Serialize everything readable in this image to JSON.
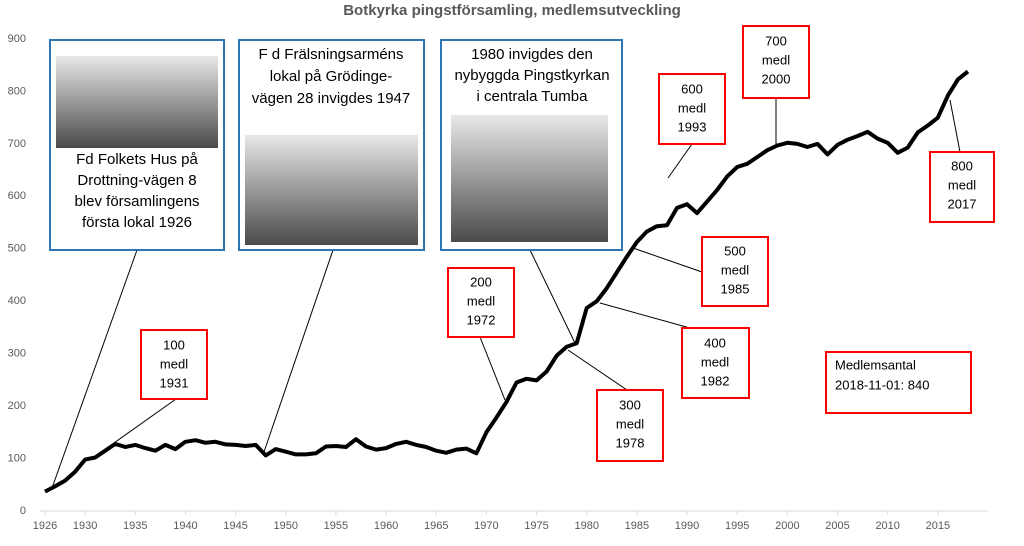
{
  "chart_data": {
    "type": "line",
    "title": "Botkyrka pingstförsamling, medlemsutveckling",
    "x": [
      1926,
      1927,
      1928,
      1929,
      1930,
      1931,
      1932,
      1933,
      1934,
      1935,
      1936,
      1937,
      1938,
      1939,
      1940,
      1941,
      1942,
      1943,
      1944,
      1945,
      1946,
      1947,
      1948,
      1949,
      1950,
      1951,
      1952,
      1953,
      1954,
      1955,
      1956,
      1957,
      1958,
      1959,
      1960,
      1961,
      1962,
      1963,
      1964,
      1965,
      1966,
      1967,
      1968,
      1969,
      1970,
      1971,
      1972,
      1973,
      1974,
      1975,
      1976,
      1977,
      1978,
      1979,
      1980,
      1981,
      1982,
      1983,
      1984,
      1985,
      1986,
      1987,
      1988,
      1989,
      1990,
      1991,
      1992,
      1993,
      1994,
      1995,
      1996,
      1997,
      1998,
      1999,
      2000,
      2001,
      2002,
      2003,
      2004,
      2005,
      2006,
      2007,
      2008,
      2009,
      2010,
      2011,
      2012,
      2013,
      2014,
      2015,
      2016,
      2017,
      2018
    ],
    "values": [
      37,
      47,
      58,
      75,
      98,
      102,
      115,
      128,
      122,
      126,
      120,
      115,
      126,
      118,
      132,
      135,
      130,
      132,
      127,
      126,
      124,
      126,
      106,
      118,
      113,
      108,
      108,
      110,
      123,
      124,
      122,
      137,
      123,
      117,
      120,
      128,
      132,
      126,
      122,
      115,
      111,
      117,
      119,
      110,
      150,
      178,
      208,
      245,
      252,
      249,
      266,
      296,
      313,
      320,
      387,
      400,
      425,
      455,
      485,
      513,
      533,
      543,
      545,
      578,
      585,
      568,
      590,
      612,
      638,
      656,
      662,
      675,
      688,
      697,
      702,
      700,
      694,
      700,
      680,
      698,
      708,
      715,
      723,
      710,
      702,
      683,
      693,
      722,
      735,
      750,
      792,
      823,
      838
    ],
    "color": "#000000",
    "xlim": [
      1926,
      2020
    ],
    "xticks": [
      1926,
      1930,
      1935,
      1940,
      1945,
      1950,
      1955,
      1960,
      1965,
      1970,
      1975,
      1980,
      1985,
      1990,
      1995,
      2000,
      2005,
      2010,
      2015
    ],
    "ylim": [
      0,
      900
    ],
    "yticks": [
      0,
      100,
      200,
      300,
      400,
      500,
      600,
      700,
      800,
      900
    ],
    "grid": false,
    "annotations": [
      [
        "Fd Folkets Hus på",
        "Drottning-vägen 8",
        "blev församlingens",
        "första lokal 1926"
      ],
      [
        "F d Frälsningsarméns",
        "lokal på Grödinge-",
        "vägen 28 invigdes 1947"
      ],
      [
        "1980 invigdes den",
        "nybyggda Pingstkyrkan",
        "i  centrala Tumba"
      ],
      [
        "100",
        "medl",
        "1931"
      ],
      [
        "200",
        "medl",
        "1972"
      ],
      [
        "300",
        "medl",
        "1978"
      ],
      [
        "400",
        "medl",
        "1982"
      ],
      [
        "500",
        "medl",
        "1985"
      ],
      [
        "600",
        "medl",
        "1993"
      ],
      [
        "700",
        "medl",
        "2000"
      ],
      [
        "800",
        "medl",
        "2017"
      ],
      [
        "Medlemsantal",
        "2018-11-01: 840"
      ]
    ]
  }
}
